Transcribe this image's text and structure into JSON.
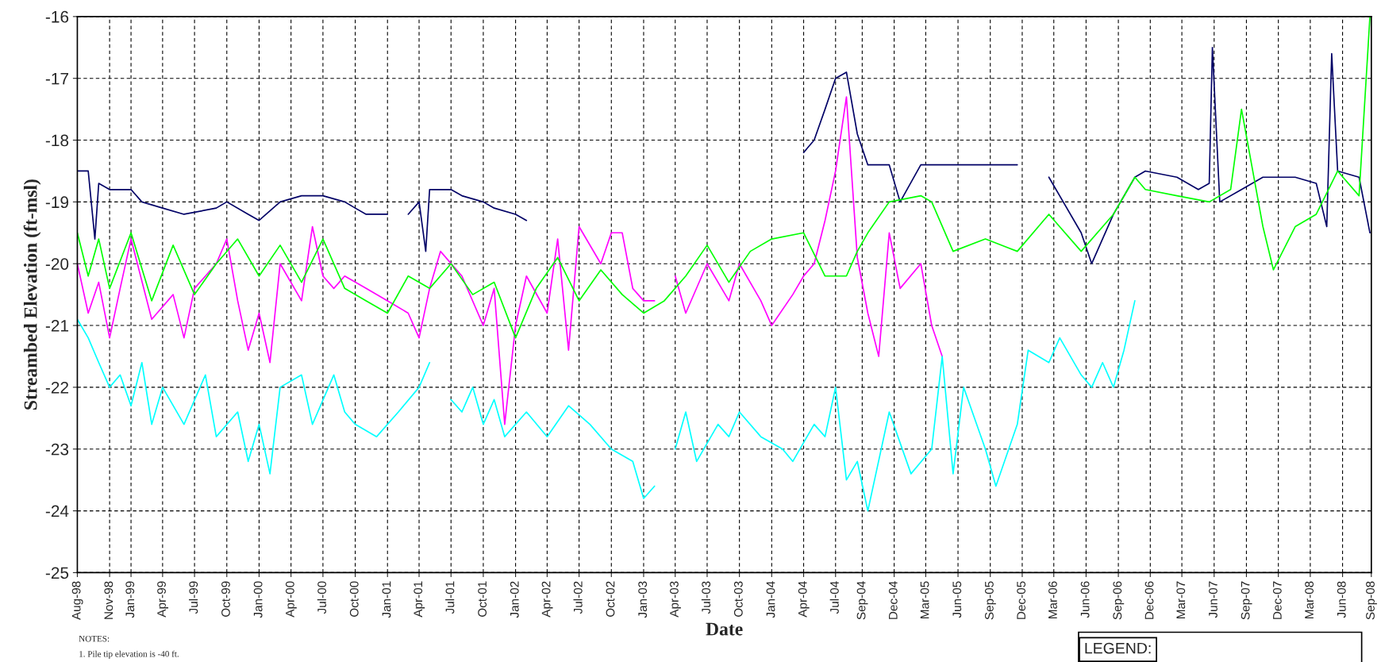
{
  "chart_data": {
    "type": "line",
    "xlabel": "Date",
    "ylabel": "Streambed Elevation (ft-msl)",
    "ylim": [
      -25,
      -16
    ],
    "yticks": [
      -25,
      -24,
      -23,
      -22,
      -21,
      -20,
      -19,
      -18,
      -17,
      -16
    ],
    "xlim": [
      "1998-08-01",
      "2008-09-05"
    ],
    "xticks": [
      {
        "value": "1998-08-01",
        "label": "Aug-98"
      },
      {
        "value": "1998-11-01",
        "label": "Nov-98"
      },
      {
        "value": "1999-01-01",
        "label": "Jan-99"
      },
      {
        "value": "1999-04-01",
        "label": "Apr-99"
      },
      {
        "value": "1999-07-01",
        "label": "Jul-99"
      },
      {
        "value": "1999-10-01",
        "label": "Oct-99"
      },
      {
        "value": "2000-01-01",
        "label": "Jan-00"
      },
      {
        "value": "2000-04-01",
        "label": "Apr-00"
      },
      {
        "value": "2000-07-01",
        "label": "Jul-00"
      },
      {
        "value": "2000-10-01",
        "label": "Oct-00"
      },
      {
        "value": "2001-01-01",
        "label": "Jan-01"
      },
      {
        "value": "2001-04-01",
        "label": "Apr-01"
      },
      {
        "value": "2001-07-01",
        "label": "Jul-01"
      },
      {
        "value": "2001-10-01",
        "label": "Oct-01"
      },
      {
        "value": "2002-01-01",
        "label": "Jan-02"
      },
      {
        "value": "2002-04-01",
        "label": "Apr-02"
      },
      {
        "value": "2002-07-01",
        "label": "Jul-02"
      },
      {
        "value": "2002-10-01",
        "label": "Oct-02"
      },
      {
        "value": "2003-01-01",
        "label": "Jan-03"
      },
      {
        "value": "2003-04-01",
        "label": "Apr-03"
      },
      {
        "value": "2003-07-01",
        "label": "Jul-03"
      },
      {
        "value": "2003-10-01",
        "label": "Oct-03"
      },
      {
        "value": "2004-01-01",
        "label": "Jan-04"
      },
      {
        "value": "2004-04-01",
        "label": "Apr-04"
      },
      {
        "value": "2004-07-01",
        "label": "Jul-04"
      },
      {
        "value": "2004-09-15",
        "label": "Sep-04"
      },
      {
        "value": "2004-12-15",
        "label": "Dec-04"
      },
      {
        "value": "2005-03-15",
        "label": "Mar-05"
      },
      {
        "value": "2005-06-15",
        "label": "Jun-05"
      },
      {
        "value": "2005-09-15",
        "label": "Sep-05"
      },
      {
        "value": "2005-12-15",
        "label": "Dec-05"
      },
      {
        "value": "2006-03-15",
        "label": "Mar-06"
      },
      {
        "value": "2006-06-15",
        "label": "Jun-06"
      },
      {
        "value": "2006-09-15",
        "label": "Sep-06"
      },
      {
        "value": "2006-12-15",
        "label": "Dec-06"
      },
      {
        "value": "2007-03-15",
        "label": "Mar-07"
      },
      {
        "value": "2007-06-15",
        "label": "Jun-07"
      },
      {
        "value": "2007-09-15",
        "label": "Sep-07"
      },
      {
        "value": "2007-12-15",
        "label": "Dec-07"
      },
      {
        "value": "2008-03-15",
        "label": "Mar-08"
      },
      {
        "value": "2008-06-15",
        "label": "Jun-08"
      },
      {
        "value": "2008-09-05",
        "label": "Sep-08"
      }
    ],
    "grid": true,
    "legend": false,
    "annotations": [
      "NOTES:",
      "1. Pile tip elevation is -40 ft.",
      "LEGEND:"
    ],
    "series": [
      {
        "color": "#000066",
        "x": [
          "1998-08-01",
          "1998-09-01",
          "1998-09-20",
          "1998-10-01",
          "1998-11-01",
          "1999-01-01",
          "1999-02-01",
          "1999-04-01",
          "1999-06-01",
          "1999-09-01",
          "1999-10-01",
          "1999-12-01",
          "2000-01-01",
          "2000-03-01",
          "2000-05-01",
          "2000-07-01",
          "2000-09-01",
          "2000-10-01",
          "2000-11-01",
          "2001-01-01",
          "2001-02-01",
          "2001-03-01",
          "2001-04-01",
          "2001-04-20",
          "2001-05-01",
          "2001-07-01",
          "2001-08-01",
          "2001-10-01",
          "2001-11-01",
          "2002-01-01",
          "2002-02-01",
          "2002-03-01",
          "2004-04-01",
          "2004-05-01",
          "2004-06-01",
          "2004-07-01",
          "2004-08-01",
          "2004-09-01",
          "2004-10-01",
          "2004-12-01",
          "2005-01-01",
          "2005-03-01",
          "2005-06-01",
          "2005-09-01",
          "2005-12-01",
          "2006-01-01",
          "2006-03-01",
          "2006-06-01",
          "2006-07-01",
          "2006-09-01",
          "2006-11-01",
          "2006-12-01",
          "2007-03-01",
          "2007-05-01",
          "2007-06-01",
          "2007-06-10",
          "2007-07-01",
          "2007-09-01",
          "2007-11-01",
          "2008-02-01",
          "2008-04-01",
          "2008-05-01",
          "2008-05-15",
          "2008-06-01",
          "2008-08-01",
          "2008-09-01"
        ],
        "values": [
          -18.5,
          -18.5,
          -19.6,
          -18.7,
          -18.8,
          -18.8,
          -19.0,
          -19.1,
          -19.2,
          -19.1,
          -19.0,
          -19.2,
          -19.3,
          -19.0,
          -18.9,
          -18.9,
          -19.0,
          -19.1,
          -19.2,
          -19.2,
          null,
          -19.2,
          -19.0,
          -19.8,
          -18.8,
          -18.8,
          -18.9,
          -19.0,
          -19.1,
          -19.2,
          -19.3,
          null,
          -18.2,
          -18.0,
          -17.5,
          -17.0,
          -16.9,
          -17.9,
          -18.4,
          -18.4,
          -19.0,
          -18.4,
          -18.4,
          -18.4,
          -18.4,
          null,
          -18.6,
          -19.5,
          -20.0,
          -19.2,
          -18.6,
          -18.5,
          -18.6,
          -18.8,
          -18.7,
          -16.5,
          -19.0,
          -18.8,
          -18.6,
          -18.6,
          -18.7,
          -19.4,
          -16.6,
          -18.5,
          -18.6,
          -19.5
        ]
      },
      {
        "color": "#ff00ff",
        "x": [
          "1998-08-01",
          "1998-09-01",
          "1998-10-01",
          "1998-11-01",
          "1998-12-01",
          "1999-01-01",
          "1999-03-01",
          "1999-05-01",
          "1999-06-01",
          "1999-07-01",
          "1999-09-01",
          "1999-10-01",
          "1999-11-01",
          "1999-12-01",
          "2000-01-01",
          "2000-02-01",
          "2000-03-01",
          "2000-05-01",
          "2000-06-01",
          "2000-07-01",
          "2000-08-01",
          "2000-09-01",
          "2000-11-01",
          "2001-01-01",
          "2001-03-01",
          "2001-04-01",
          "2001-05-01",
          "2001-06-01",
          "2001-08-01",
          "2001-10-01",
          "2001-11-01",
          "2001-12-01",
          "2002-01-01",
          "2002-02-01",
          "2002-04-01",
          "2002-05-01",
          "2002-06-01",
          "2002-07-01",
          "2002-09-01",
          "2002-10-01",
          "2002-11-01",
          "2002-12-01",
          "2003-01-01",
          "2003-02-01",
          "2003-03-01",
          "2003-04-01",
          "2003-05-01",
          "2003-07-01",
          "2003-09-01",
          "2003-10-01",
          "2003-12-01",
          "2004-01-01",
          "2004-03-01",
          "2004-04-01",
          "2004-05-01",
          "2004-06-01",
          "2004-07-01",
          "2004-08-01",
          "2004-09-01",
          "2004-10-01",
          "2004-11-01",
          "2004-12-01",
          "2005-01-01",
          "2005-03-01",
          "2005-04-01",
          "2005-05-01"
        ],
        "values": [
          -20.0,
          -20.8,
          -20.3,
          -21.2,
          -20.4,
          -19.6,
          -20.9,
          -20.5,
          -21.2,
          -20.4,
          -20.0,
          -19.6,
          -20.6,
          -21.4,
          -20.8,
          -21.6,
          -20.0,
          -20.6,
          -19.4,
          -20.2,
          -20.4,
          -20.2,
          -20.4,
          -20.6,
          -20.8,
          -21.2,
          -20.4,
          -19.8,
          -20.2,
          -21.0,
          -20.4,
          -22.6,
          -21.0,
          -20.2,
          -20.8,
          -19.6,
          -21.4,
          -19.4,
          -20.0,
          -19.5,
          -19.5,
          -20.4,
          -20.6,
          -20.6,
          null,
          -20.2,
          -20.8,
          -20.0,
          -20.6,
          -20.0,
          -20.6,
          -21.0,
          -20.5,
          -20.2,
          -20.0,
          -19.3,
          -18.5,
          -17.3,
          -19.9,
          -20.8,
          -21.5,
          -19.5,
          -20.4,
          -20.0,
          -21.0,
          -21.5
        ]
      },
      {
        "color": "#00ff00",
        "x": [
          "1998-08-01",
          "1998-09-01",
          "1998-10-01",
          "1998-11-01",
          "1999-01-01",
          "1999-03-01",
          "1999-05-01",
          "1999-07-01",
          "1999-09-01",
          "1999-11-01",
          "2000-01-01",
          "2000-03-01",
          "2000-05-01",
          "2000-07-01",
          "2000-09-01",
          "2000-11-01",
          "2001-01-01",
          "2001-03-01",
          "2001-05-01",
          "2001-07-01",
          "2001-09-01",
          "2001-11-01",
          "2002-01-01",
          "2002-03-01",
          "2002-05-01",
          "2002-07-01",
          "2002-09-01",
          "2002-11-01",
          "2003-01-01",
          "2003-03-01",
          "2003-05-01",
          "2003-07-01",
          "2003-09-01",
          "2003-11-01",
          "2004-01-01",
          "2004-04-01",
          "2004-06-01",
          "2004-08-01",
          "2004-09-01",
          "2004-10-01",
          "2004-12-01",
          "2005-03-01",
          "2005-04-01",
          "2005-06-01",
          "2005-09-01",
          "2005-12-01",
          "2006-03-01",
          "2006-06-01",
          "2006-09-01",
          "2006-11-01",
          "2006-12-01",
          "2007-03-01",
          "2007-06-01",
          "2007-08-01",
          "2007-09-01",
          "2007-11-01",
          "2007-12-01",
          "2008-02-01",
          "2008-04-01",
          "2008-06-01",
          "2008-08-01",
          "2008-09-01"
        ],
        "values": [
          -19.5,
          -20.2,
          -19.6,
          -20.4,
          -19.5,
          -20.6,
          -19.7,
          -20.5,
          -20.0,
          -19.6,
          -20.2,
          -19.7,
          -20.3,
          -19.6,
          -20.4,
          -20.6,
          -20.8,
          -20.2,
          -20.4,
          -20.0,
          -20.5,
          -20.3,
          -21.2,
          -20.4,
          -19.9,
          -20.6,
          -20.1,
          -20.5,
          -20.8,
          -20.6,
          -20.2,
          -19.7,
          -20.3,
          -19.8,
          -19.6,
          -19.5,
          -20.2,
          -20.2,
          -19.8,
          -19.5,
          -19.0,
          -18.9,
          -19.0,
          -19.8,
          -19.6,
          -19.8,
          -19.2,
          -19.8,
          -19.2,
          -18.6,
          -18.8,
          -18.9,
          -19.0,
          -18.8,
          -17.5,
          -19.4,
          -20.1,
          -19.4,
          -19.2,
          -18.5,
          -18.9,
          -16.0
        ]
      },
      {
        "color": "#00ffff",
        "x": [
          "1998-08-01",
          "1998-09-01",
          "1998-10-01",
          "1998-11-01",
          "1998-12-01",
          "1999-01-01",
          "1999-02-01",
          "1999-03-01",
          "1999-04-01",
          "1999-06-01",
          "1999-08-01",
          "1999-09-01",
          "1999-11-01",
          "1999-12-01",
          "2000-01-01",
          "2000-02-01",
          "2000-03-01",
          "2000-05-01",
          "2000-06-01",
          "2000-08-01",
          "2000-09-01",
          "2000-10-01",
          "2000-12-01",
          "2001-02-01",
          "2001-04-01",
          "2001-05-01",
          "2001-06-01",
          "2001-07-01",
          "2001-08-01",
          "2001-09-01",
          "2001-10-01",
          "2001-11-01",
          "2001-12-01",
          "2002-02-01",
          "2002-04-01",
          "2002-06-01",
          "2002-08-01",
          "2002-10-01",
          "2002-12-01",
          "2003-01-01",
          "2003-02-01",
          "2003-03-01",
          "2003-04-01",
          "2003-05-01",
          "2003-06-01",
          "2003-08-01",
          "2003-09-01",
          "2003-10-01",
          "2003-12-01",
          "2004-02-01",
          "2004-03-01",
          "2004-05-01",
          "2004-06-01",
          "2004-07-01",
          "2004-08-01",
          "2004-09-01",
          "2004-10-01",
          "2004-12-01",
          "2005-02-01",
          "2005-04-01",
          "2005-05-01",
          "2005-06-01",
          "2005-07-01",
          "2005-09-01",
          "2005-10-01",
          "2005-12-01",
          "2006-01-01",
          "2006-03-01",
          "2006-04-01",
          "2006-06-01",
          "2006-07-01",
          "2006-08-01",
          "2006-09-01",
          "2006-10-01",
          "2006-11-01"
        ],
        "values": [
          -20.9,
          -21.2,
          -21.6,
          -22.0,
          -21.8,
          -22.3,
          -21.6,
          -22.6,
          -22.0,
          -22.6,
          -21.8,
          -22.8,
          -22.4,
          -23.2,
          -22.6,
          -23.4,
          -22.0,
          -21.8,
          -22.6,
          -21.8,
          -22.4,
          -22.6,
          -22.8,
          -22.4,
          -22.0,
          -21.6,
          null,
          -22.2,
          -22.4,
          -22.0,
          -22.6,
          -22.2,
          -22.8,
          -22.4,
          -22.8,
          -22.3,
          -22.6,
          -23.0,
          -23.2,
          -23.8,
          -23.6,
          null,
          -23.0,
          -22.4,
          -23.2,
          -22.6,
          -22.8,
          -22.4,
          -22.8,
          -23.0,
          -23.2,
          -22.6,
          -22.8,
          -22.0,
          -23.5,
          -23.2,
          -24.0,
          -22.4,
          -23.4,
          -23.0,
          -21.5,
          -23.4,
          -22.0,
          -23.0,
          -23.6,
          -22.6,
          -21.4,
          -21.6,
          -21.2,
          -21.8,
          -22.0,
          -21.6,
          -22.0,
          -21.4,
          -20.6
        ]
      }
    ]
  }
}
